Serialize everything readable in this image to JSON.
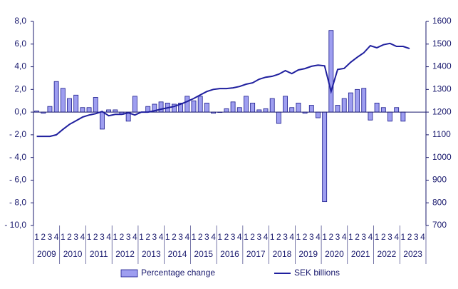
{
  "chart_data": {
    "type": "bar",
    "categories": [
      "1",
      "2",
      "3",
      "4",
      "1",
      "2",
      "3",
      "4",
      "1",
      "2",
      "3",
      "4",
      "1",
      "2",
      "3",
      "4",
      "1",
      "2",
      "3",
      "4",
      "1",
      "2",
      "3",
      "4",
      "1",
      "2",
      "3",
      "4",
      "1",
      "2",
      "3",
      "4",
      "1",
      "2",
      "3",
      "4",
      "1",
      "2",
      "3",
      "4",
      "1",
      "2",
      "3",
      "4",
      "1",
      "2",
      "3",
      "4",
      "1",
      "2",
      "3",
      "4",
      "1",
      "2",
      "3",
      "4",
      "1",
      "2",
      "3",
      "4"
    ],
    "years": [
      "2009",
      "2010",
      "2011",
      "2012",
      "2013",
      "2014",
      "2015",
      "2016",
      "2017",
      "2018",
      "2019",
      "2020",
      "2021",
      "2022",
      "2023"
    ],
    "series": [
      {
        "name": "Percentage change",
        "type": "bar",
        "color": "#9e9ef0",
        "values": [
          0.1,
          -0.1,
          0.5,
          2.7,
          2.1,
          1.2,
          1.5,
          0.4,
          0.4,
          1.3,
          -1.5,
          0.2,
          0.2,
          -0.2,
          -0.8,
          1.4,
          0.0,
          0.5,
          0.7,
          0.9,
          0.8,
          0.7,
          0.8,
          1.4,
          1.0,
          1.4,
          0.8,
          -0.1,
          0.0,
          0.3,
          0.9,
          0.4,
          1.4,
          0.8,
          0.2,
          0.3,
          1.2,
          -1.0,
          1.4,
          0.4,
          0.8,
          -0.1,
          0.6,
          -0.5,
          -7.9,
          7.2,
          0.6,
          1.2,
          1.7,
          2.0,
          2.1,
          -0.7,
          0.8,
          0.4,
          -0.8,
          0.4,
          -0.8,
          null,
          null,
          null
        ]
      },
      {
        "name": "SEK billions",
        "type": "line",
        "color": "#1f1f9e",
        "axis": "y2",
        "values": [
          1093,
          1093,
          1093,
          1100,
          1124,
          1146,
          1162,
          1178,
          1187,
          1193,
          1203,
          1184,
          1190,
          1190,
          1197,
          1187,
          1200,
          1200,
          1206,
          1213,
          1219,
          1225,
          1235,
          1247,
          1260,
          1276,
          1291,
          1300,
          1304,
          1304,
          1307,
          1313,
          1323,
          1329,
          1345,
          1354,
          1358,
          1367,
          1383,
          1370,
          1386,
          1392,
          1402,
          1407,
          1404,
          1291,
          1388,
          1393,
          1420,
          1442,
          1462,
          1493,
          1484,
          1497,
          1503,
          1490,
          1490,
          1480,
          null,
          null
        ]
      }
    ],
    "ylim": [
      -10,
      8
    ],
    "yticks": [
      {
        "value": -10,
        "label": "- 10,0"
      },
      {
        "value": -8,
        "label": "- 8,0"
      },
      {
        "value": -6,
        "label": "- 6,0"
      },
      {
        "value": -4,
        "label": "- 4,0"
      },
      {
        "value": -2,
        "label": "- 2,0"
      },
      {
        "value": 0,
        "label": "0,0"
      },
      {
        "value": 2,
        "label": "2,0"
      },
      {
        "value": 4,
        "label": "4,0"
      },
      {
        "value": 6,
        "label": "6,0"
      },
      {
        "value": 8,
        "label": "8,0"
      }
    ],
    "y2lim": [
      700,
      1600
    ],
    "y2ticks": [
      700,
      800,
      900,
      1000,
      1100,
      1200,
      1300,
      1400,
      1500,
      1600
    ],
    "legend": "bottom"
  }
}
